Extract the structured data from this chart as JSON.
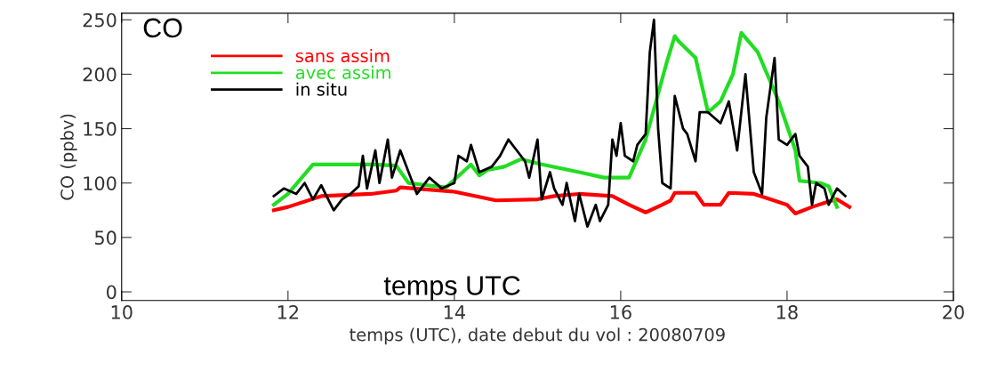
{
  "chart_data": {
    "type": "line",
    "title": "CO",
    "xlabel": "temps (UTC), date debut du vol : 20080709",
    "ylabel": "CO (ppbv)",
    "annotations": [
      "temps UTC"
    ],
    "xlim": [
      10,
      20
    ],
    "xticks": [
      10,
      12,
      14,
      16,
      18,
      20
    ],
    "ylim": [
      -8,
      256
    ],
    "yticks": [
      0,
      50,
      100,
      150,
      200,
      250
    ],
    "legend": "top left",
    "grid": false,
    "series": [
      {
        "name": "sans assim",
        "color": "#ff0000",
        "x": [
          11.83,
          12.0,
          12.4,
          13.0,
          13.3,
          13.35,
          14.0,
          14.5,
          15.0,
          15.2,
          15.5,
          15.9,
          16.1,
          16.3,
          16.5,
          16.6,
          16.65,
          16.9,
          17.0,
          17.2,
          17.3,
          17.6,
          17.8,
          18.0,
          18.1,
          18.3,
          18.5,
          18.6,
          18.75
        ],
        "values": [
          75,
          78,
          88,
          90,
          93,
          96,
          92,
          84,
          85,
          88,
          90,
          88,
          80,
          73,
          80,
          84,
          91,
          91,
          80,
          80,
          91,
          90,
          85,
          80,
          72,
          78,
          83,
          85,
          78
        ]
      },
      {
        "name": "avec assim",
        "color": "#22dd22",
        "x": [
          11.83,
          12.0,
          12.3,
          13.0,
          13.3,
          13.45,
          13.9,
          14.1,
          14.2,
          14.3,
          14.4,
          14.6,
          14.8,
          15.0,
          15.5,
          15.8,
          16.1,
          16.3,
          16.55,
          16.65,
          16.7,
          16.9,
          17.05,
          17.2,
          17.35,
          17.45,
          17.65,
          17.9,
          18.1,
          18.15,
          18.4,
          18.5,
          18.6
        ],
        "values": [
          80,
          90,
          117,
          117,
          116,
          100,
          96,
          110,
          117,
          107,
          112,
          115,
          122,
          118,
          110,
          105,
          105,
          140,
          210,
          235,
          230,
          215,
          165,
          175,
          200,
          238,
          220,
          175,
          130,
          102,
          100,
          97,
          78
        ]
      },
      {
        "name": "in situ",
        "color": "#000000",
        "x": [
          11.83,
          11.95,
          12.1,
          12.2,
          12.3,
          12.4,
          12.45,
          12.55,
          12.65,
          12.75,
          12.85,
          12.9,
          12.95,
          13.05,
          13.1,
          13.2,
          13.25,
          13.35,
          13.45,
          13.55,
          13.7,
          13.85,
          14.0,
          14.05,
          14.15,
          14.2,
          14.3,
          14.45,
          14.55,
          14.65,
          14.75,
          14.85,
          14.9,
          15.0,
          15.05,
          15.15,
          15.2,
          15.3,
          15.35,
          15.45,
          15.5,
          15.6,
          15.7,
          15.75,
          15.85,
          15.9,
          15.95,
          16.0,
          16.05,
          16.15,
          16.2,
          16.3,
          16.35,
          16.4,
          16.45,
          16.5,
          16.6,
          16.65,
          16.75,
          16.8,
          16.9,
          16.95,
          17.05,
          17.2,
          17.3,
          17.4,
          17.5,
          17.6,
          17.7,
          17.75,
          17.85,
          17.9,
          18.0,
          18.1,
          18.15,
          18.25,
          18.3,
          18.35,
          18.45,
          18.5,
          18.6,
          18.7
        ],
        "values": [
          88,
          95,
          90,
          100,
          85,
          98,
          90,
          75,
          85,
          90,
          97,
          125,
          95,
          130,
          100,
          140,
          105,
          130,
          110,
          90,
          105,
          95,
          100,
          125,
          120,
          135,
          110,
          115,
          125,
          140,
          130,
          120,
          105,
          140,
          85,
          110,
          95,
          80,
          100,
          65,
          90,
          60,
          80,
          65,
          80,
          140,
          125,
          155,
          125,
          120,
          135,
          145,
          220,
          250,
          150,
          100,
          95,
          180,
          150,
          145,
          120,
          165,
          165,
          155,
          175,
          130,
          200,
          110,
          90,
          160,
          215,
          140,
          135,
          145,
          125,
          115,
          80,
          100,
          95,
          80,
          95,
          88
        ]
      }
    ]
  }
}
